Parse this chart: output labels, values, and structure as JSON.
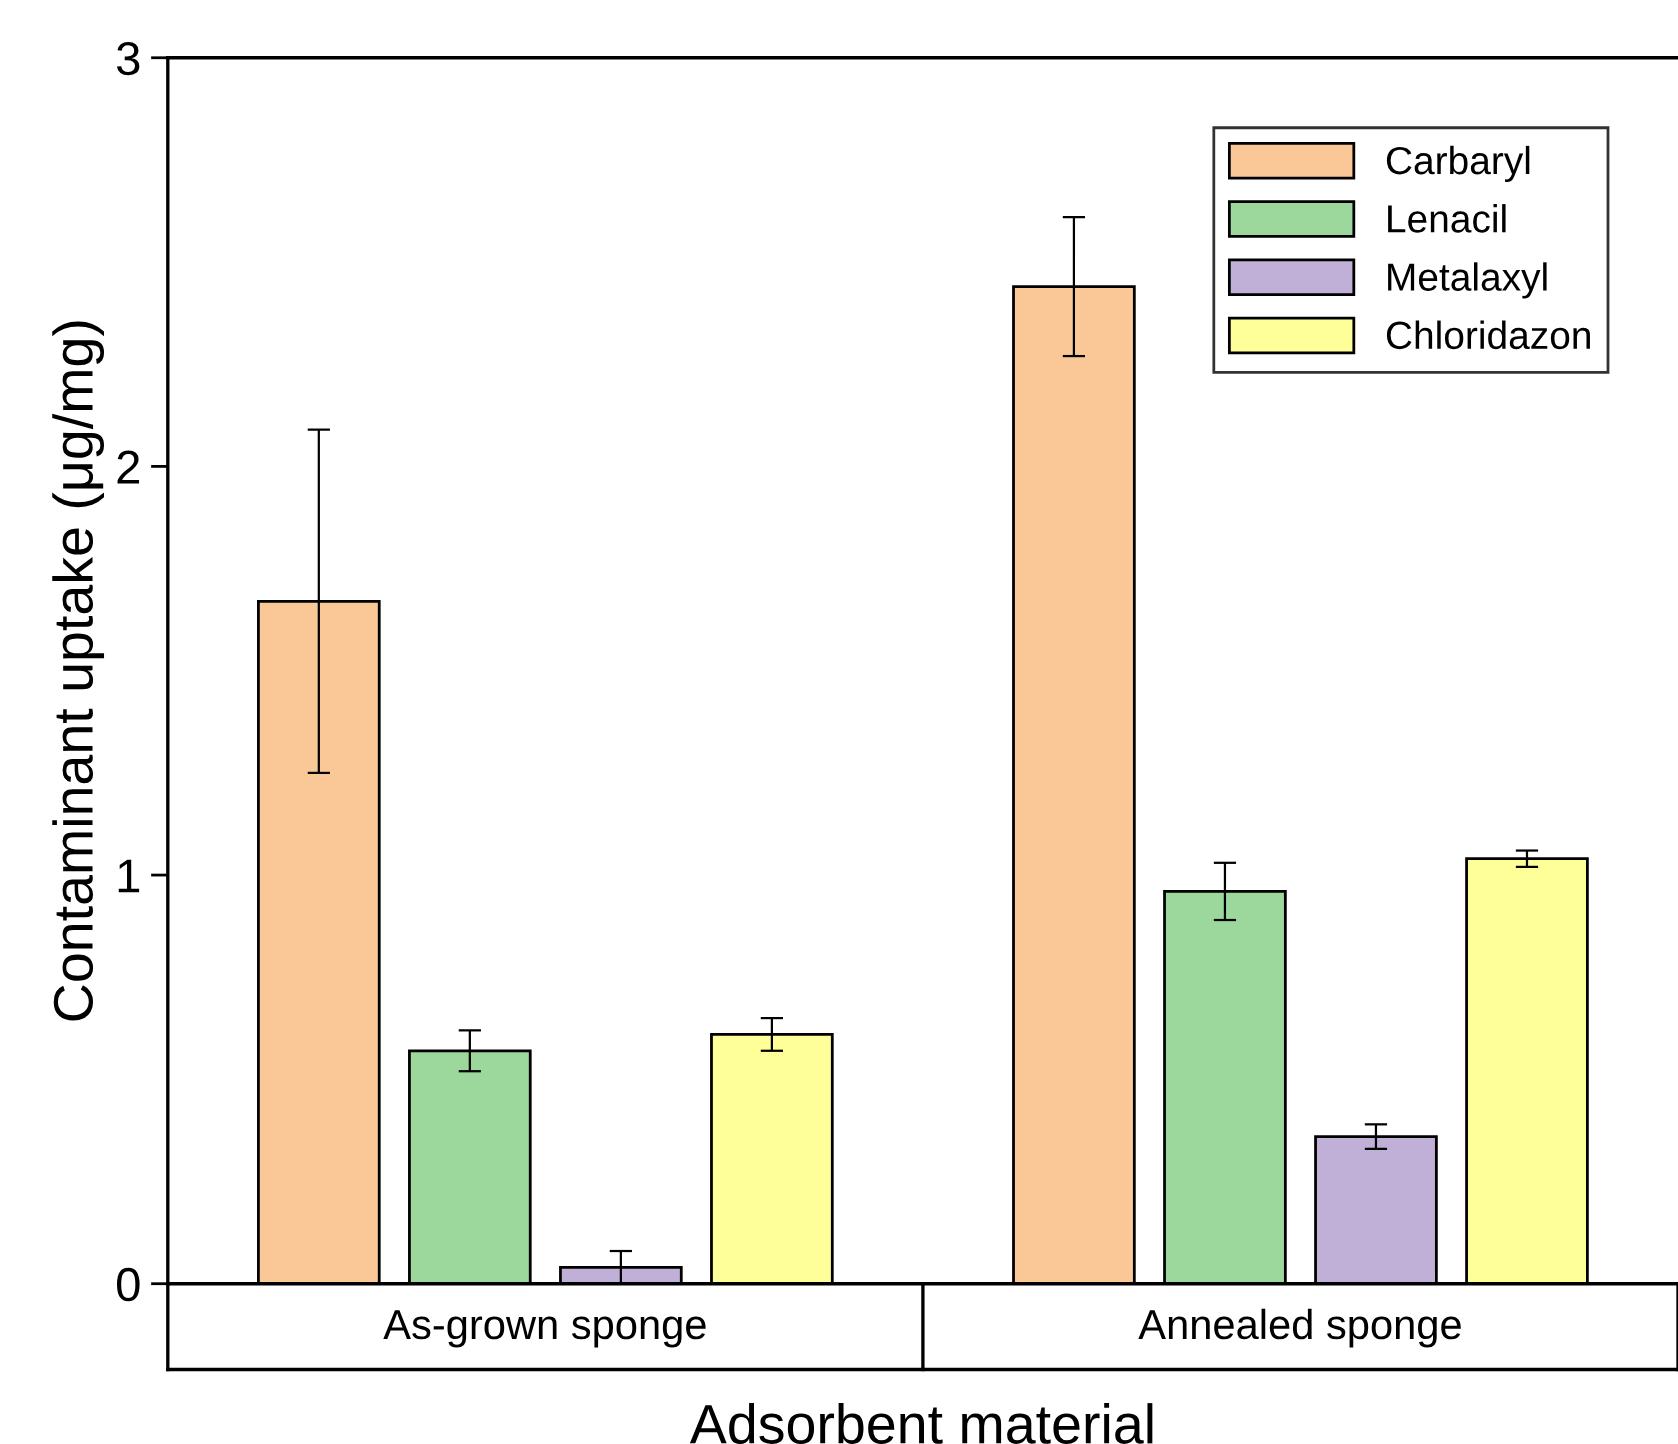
{
  "chart_data": {
    "type": "bar",
    "xlabel": "Adsorbent material",
    "ylabel": "Contaminant uptake (μg/mg)",
    "categories": [
      "As-grown sponge",
      "Annealed sponge"
    ],
    "series": [
      {
        "name": "Carbaryl",
        "color": "#f9c896",
        "values": [
          1.67,
          2.44
        ],
        "errors": [
          0.42,
          0.17
        ]
      },
      {
        "name": "Lenacil",
        "color": "#9cd89c",
        "values": [
          0.57,
          0.96
        ],
        "errors": [
          0.05,
          0.07
        ]
      },
      {
        "name": "Metalaxyl",
        "color": "#c0b0d8",
        "values": [
          0.04,
          0.36
        ],
        "errors": [
          0.04,
          0.03
        ]
      },
      {
        "name": "Chloridazon",
        "color": "#ffff99",
        "values": [
          0.61,
          1.04
        ],
        "errors": [
          0.04,
          0.02
        ]
      }
    ],
    "ylim": [
      0,
      3
    ],
    "yticks": [
      0,
      1,
      2,
      3
    ],
    "grid": false,
    "legend": "top right"
  }
}
